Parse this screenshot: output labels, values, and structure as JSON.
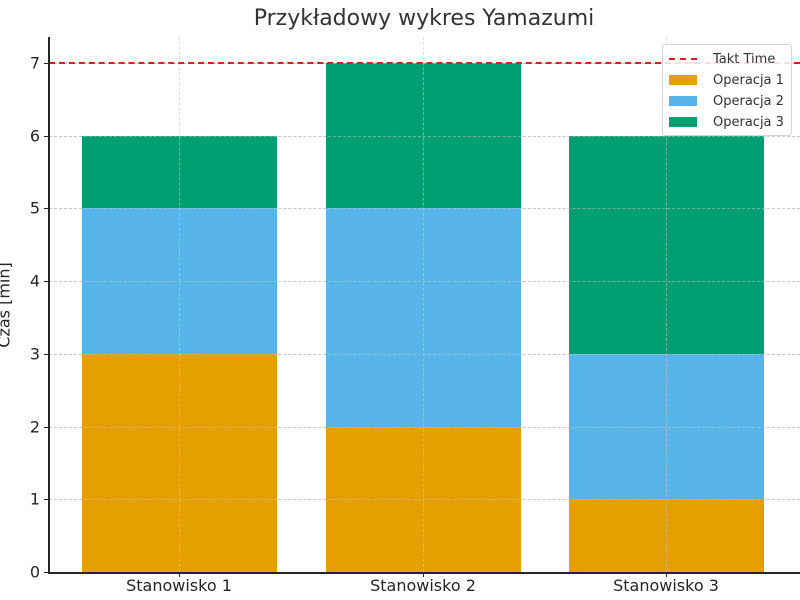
{
  "chart_data": {
    "type": "bar",
    "stacked": true,
    "title": "Przykładowy wykres Yamazumi",
    "xlabel": "",
    "ylabel": "Czas [min]",
    "ylim": [
      0,
      7.35
    ],
    "yticks": [
      "0",
      "1",
      "2",
      "3",
      "4",
      "5",
      "6",
      "7"
    ],
    "categories": [
      "Stanowisko 1",
      "Stanowisko 2",
      "Stanowisko 3"
    ],
    "series": [
      {
        "name": "Operacja 1",
        "color": "#E69F00",
        "values": [
          3,
          2,
          1
        ]
      },
      {
        "name": "Operacja 2",
        "color": "#56B4E9",
        "values": [
          2,
          3,
          2
        ]
      },
      {
        "name": "Operacja 3",
        "color": "#009E73",
        "values": [
          1,
          2,
          3
        ]
      }
    ],
    "reference_lines": [
      {
        "name": "Takt Time",
        "value": 7,
        "color": "#E8191C",
        "style": "dashed"
      }
    ],
    "grid": true,
    "legend_position": "upper right"
  },
  "legend": {
    "takt": "Takt Time",
    "op1": "Operacja 1",
    "op2": "Operacja 2",
    "op3": "Operacja 3"
  }
}
